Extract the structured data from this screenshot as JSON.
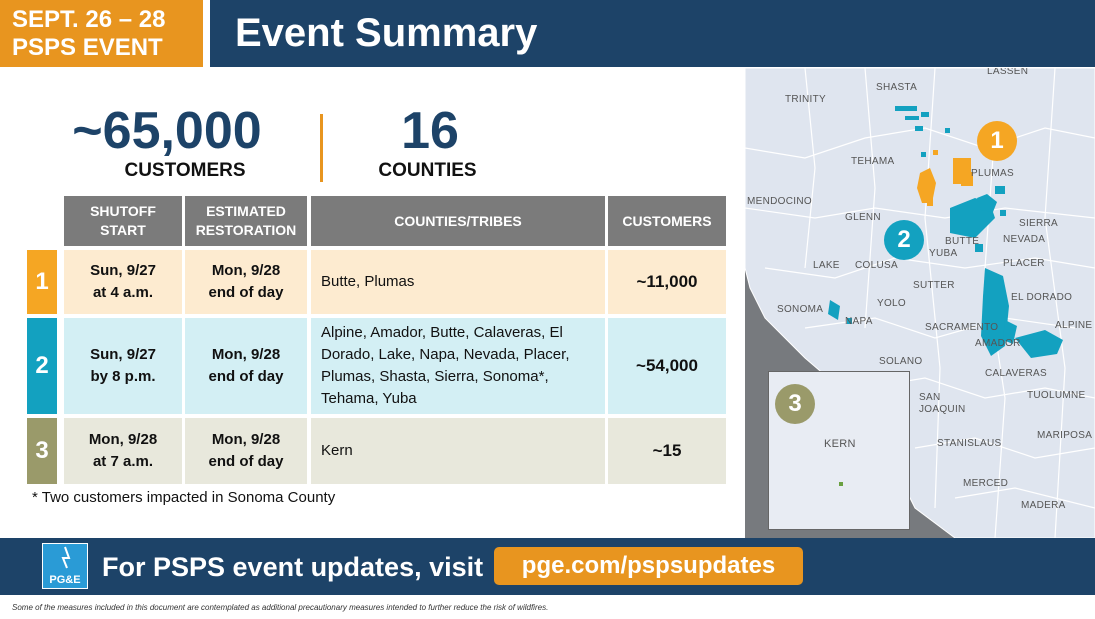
{
  "header": {
    "date_line1": "SEPT. 26 – 28",
    "date_line2": "PSPS EVENT",
    "title": "Event Summary"
  },
  "stats": {
    "customers_value": "~65,000",
    "customers_label": "CUSTOMERS",
    "counties_value": "16",
    "counties_label": "COUNTIES"
  },
  "table": {
    "headers": {
      "shutoff_line1": "SHUTOFF",
      "shutoff_line2": "START",
      "restoration_line1": "ESTIMATED",
      "restoration_line2": "RESTORATION",
      "counties": "COUNTIES/TRIBES",
      "customers": "CUSTOMERS"
    },
    "rows": [
      {
        "num": "1",
        "shutoff_line1": "Sun, 9/27",
        "shutoff_line2": "at 4 a.m.",
        "restore_line1": "Mon, 9/28",
        "restore_line2": "end of day",
        "counties": "Butte, Plumas",
        "customers": "~11,000",
        "color": "#f5a623"
      },
      {
        "num": "2",
        "shutoff_line1": "Sun, 9/27",
        "shutoff_line2": "by 8 p.m.",
        "restore_line1": "Mon, 9/28",
        "restore_line2": "end of day",
        "counties": "Alpine, Amador, Butte, Calaveras, El Dorado, Lake, Napa, Nevada, Placer, Plumas, Shasta, Sierra, Sonoma*, Tehama, Yuba",
        "customers": "~54,000",
        "color": "#13a1c0"
      },
      {
        "num": "3",
        "shutoff_line1": "Mon, 9/28",
        "shutoff_line2": "at 7 a.m.",
        "restore_line1": "Mon, 9/28",
        "restore_line2": "end of day",
        "counties": "Kern",
        "customers": "~15",
        "color": "#9a9a6a"
      }
    ]
  },
  "footnote": "* Two customers impacted in Sonoma County",
  "map": {
    "labels": [
      "LASSEN",
      "SHASTA",
      "TRINITY",
      "TEHAMA",
      "PLUMAS",
      "MENDOCINO",
      "GLENN",
      "SIERRA",
      "NEVADA",
      "BUTTE",
      "LAKE",
      "COLUSA",
      "YUBA",
      "PLACER",
      "SUTTER",
      "EL DORADO",
      "SONOMA",
      "YOLO",
      "NAPA",
      "SACRAMENTO",
      "ALPINE",
      "AMADOR",
      "SOLANO",
      "CALAVERAS",
      "SAN JOAQUIN",
      "TUOLUMNE",
      "STANISLAUS",
      "MARIPOSA",
      "MERCED",
      "MADERA",
      "KERN"
    ],
    "markers": [
      "1",
      "2",
      "3"
    ],
    "colors": {
      "zone1": "#f5a623",
      "zone2": "#13a1c0",
      "zone3": "#9a9a6a"
    }
  },
  "footer": {
    "logo_text": "PG&E",
    "cta": "For PSPS event updates, visit",
    "url": "pge.com/pspsupdates"
  },
  "disclaimer": "Some of the measures included in this document are contemplated as additional precautionary measures intended to further reduce the risk of wildfires."
}
